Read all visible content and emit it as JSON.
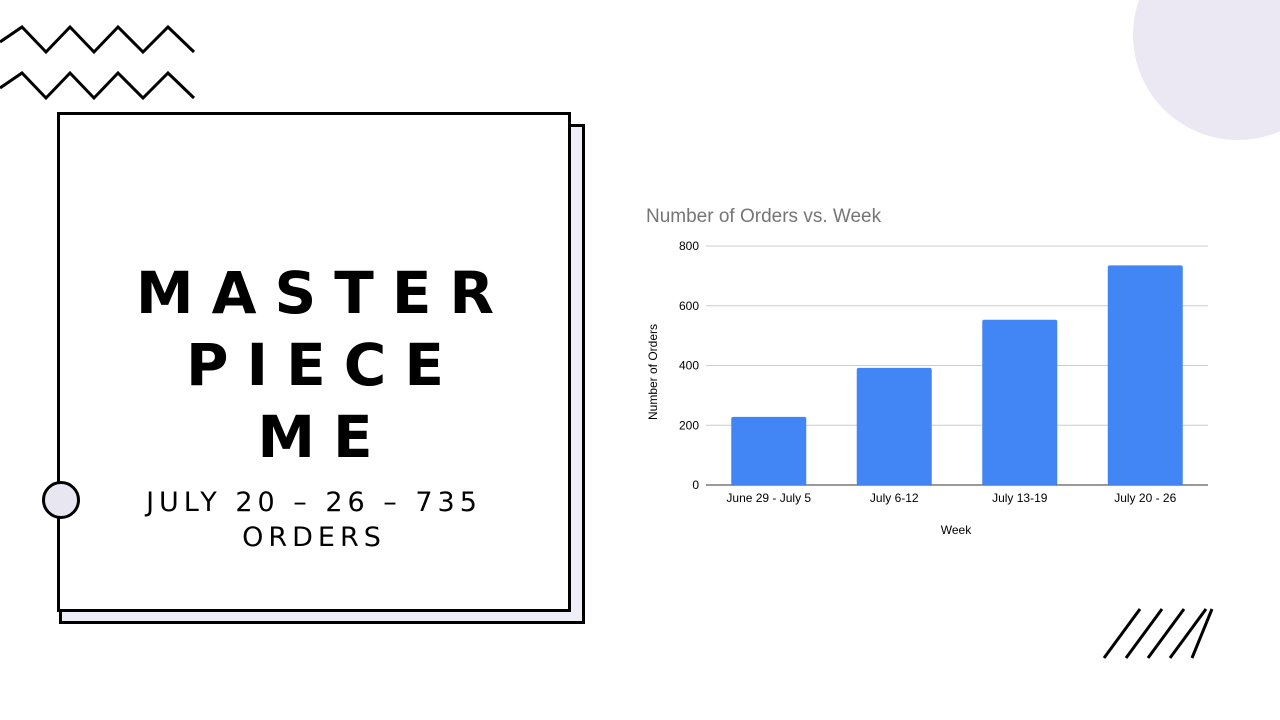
{
  "slide": {
    "title_lines": [
      "MASTER",
      "PIECE",
      "ME"
    ],
    "subtitle": "JULY 20 – 26 – 735 ORDERS",
    "colors": {
      "accent_circle": "#ebe8f4",
      "shadow_fill": "#eeeef6",
      "bar": "#4285f4"
    }
  },
  "chart_data": {
    "type": "bar",
    "title": "Number of Orders vs. Week",
    "xlabel": "Week",
    "ylabel": "Number of Orders",
    "categories": [
      "June 29 - July 5",
      "July 6-12",
      "July 13-19",
      "July 20 - 26"
    ],
    "values": [
      228,
      392,
      553,
      735
    ],
    "ylim": [
      0,
      800
    ],
    "yticks": [
      0,
      200,
      400,
      600,
      800
    ],
    "grid": true,
    "legend": "none"
  }
}
